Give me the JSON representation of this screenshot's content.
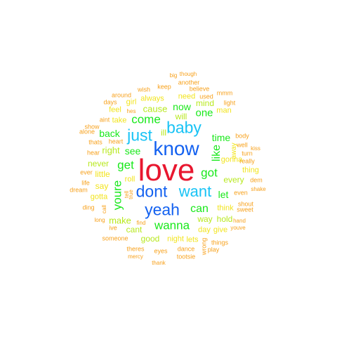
{
  "colors": {
    "red": "#e8172f",
    "blue": "#1361f0",
    "cyan": "#19c3f5",
    "green": "#18e81a",
    "lime": "#b7e81c",
    "yellow": "#f2e41c",
    "orange": "#f7a11c",
    "dark_orange": "#ef7b16"
  },
  "words": [
    {
      "text": "love",
      "size": 44,
      "color": "red"
    },
    {
      "text": "know",
      "size": 28,
      "color": "blue"
    },
    {
      "text": "dont",
      "size": 23,
      "color": "blue"
    },
    {
      "text": "yeah",
      "size": 23,
      "color": "blue"
    },
    {
      "text": "baby",
      "size": 23,
      "color": "cyan"
    },
    {
      "text": "just",
      "size": 23,
      "color": "cyan"
    },
    {
      "text": "want",
      "size": 22,
      "color": "cyan"
    },
    {
      "text": "wanna",
      "size": 17,
      "color": "green"
    },
    {
      "text": "come",
      "size": 17,
      "color": "green"
    },
    {
      "text": "got",
      "size": 17,
      "color": "green"
    },
    {
      "text": "get",
      "size": 17,
      "color": "green"
    },
    {
      "text": "youre",
      "size": 17,
      "color": "green",
      "vertical": true
    },
    {
      "text": "can",
      "size": 16,
      "color": "green"
    },
    {
      "text": "like",
      "size": 16,
      "color": "green",
      "vertical": true
    },
    {
      "text": "one",
      "size": 15,
      "color": "green"
    },
    {
      "text": "time",
      "size": 14,
      "color": "green"
    },
    {
      "text": "let",
      "size": 14,
      "color": "green"
    },
    {
      "text": "back",
      "size": 14,
      "color": "green"
    },
    {
      "text": "see",
      "size": 14,
      "color": "green"
    },
    {
      "text": "now",
      "size": 14,
      "color": "green"
    },
    {
      "text": "make",
      "size": 13,
      "color": "lime"
    },
    {
      "text": "cause",
      "size": 13,
      "color": "lime"
    },
    {
      "text": "right",
      "size": 13,
      "color": "lime"
    },
    {
      "text": "never",
      "size": 12,
      "color": "lime"
    },
    {
      "text": "every",
      "size": 12,
      "color": "lime"
    },
    {
      "text": "way",
      "size": 12,
      "color": "lime"
    },
    {
      "text": "hold",
      "size": 12,
      "color": "lime"
    },
    {
      "text": "good",
      "size": 12,
      "color": "lime"
    },
    {
      "text": "will",
      "size": 12,
      "color": "lime"
    },
    {
      "text": "mind",
      "size": 12,
      "color": "lime"
    },
    {
      "text": "cant",
      "size": 12,
      "color": "lime"
    },
    {
      "text": "ill",
      "size": 12,
      "color": "lime"
    },
    {
      "text": "say",
      "size": 12,
      "color": "yellow"
    },
    {
      "text": "little",
      "size": 12,
      "color": "yellow"
    },
    {
      "text": "gotta",
      "size": 11,
      "color": "yellow"
    },
    {
      "text": "gonna",
      "size": 11,
      "color": "yellow"
    },
    {
      "text": "thing",
      "size": 11,
      "color": "yellow"
    },
    {
      "text": "take",
      "size": 11,
      "color": "yellow"
    },
    {
      "text": "feel",
      "size": 11,
      "color": "yellow"
    },
    {
      "text": "roll",
      "size": 11,
      "color": "yellow"
    },
    {
      "text": "need",
      "size": 11,
      "color": "yellow"
    },
    {
      "text": "think",
      "size": 11,
      "color": "yellow"
    },
    {
      "text": "night",
      "size": 11,
      "color": "yellow"
    },
    {
      "text": "lets",
      "size": 11,
      "color": "yellow"
    },
    {
      "text": "day",
      "size": 11,
      "color": "yellow"
    },
    {
      "text": "give",
      "size": 11,
      "color": "yellow"
    },
    {
      "text": "man",
      "size": 11,
      "color": "yellow"
    },
    {
      "text": "always",
      "size": 11,
      "color": "yellow"
    },
    {
      "text": "girl",
      "size": 11,
      "color": "yellow"
    },
    {
      "text": "away",
      "size": 10,
      "color": "yellow",
      "vertical": true
    },
    {
      "text": "mmm",
      "size": 9,
      "color": "orange"
    },
    {
      "text": "wish",
      "size": 9,
      "color": "orange"
    },
    {
      "text": "keep",
      "size": 9,
      "color": "orange"
    },
    {
      "text": "believe",
      "size": 9,
      "color": "orange"
    },
    {
      "text": "light",
      "size": 9,
      "color": "orange"
    },
    {
      "text": "around",
      "size": 9,
      "color": "orange"
    },
    {
      "text": "days",
      "size": 9,
      "color": "orange"
    },
    {
      "text": "show",
      "size": 9,
      "color": "orange"
    },
    {
      "text": "alone",
      "size": 9,
      "color": "orange"
    },
    {
      "text": "thats",
      "size": 9,
      "color": "orange"
    },
    {
      "text": "hear",
      "size": 9,
      "color": "orange"
    },
    {
      "text": "heart",
      "size": 9,
      "color": "orange"
    },
    {
      "text": "aint",
      "size": 9,
      "color": "orange"
    },
    {
      "text": "hes",
      "size": 8,
      "color": "orange"
    },
    {
      "text": "ever",
      "size": 9,
      "color": "orange"
    },
    {
      "text": "life",
      "size": 9,
      "color": "orange"
    },
    {
      "text": "dream",
      "size": 9,
      "color": "orange"
    },
    {
      "text": "ding",
      "size": 9,
      "color": "orange"
    },
    {
      "text": "long",
      "size": 8,
      "color": "orange"
    },
    {
      "text": "ive",
      "size": 9,
      "color": "orange"
    },
    {
      "text": "someone",
      "size": 9,
      "color": "orange"
    },
    {
      "text": "theres",
      "size": 9,
      "color": "orange"
    },
    {
      "text": "mercy",
      "size": 8,
      "color": "orange"
    },
    {
      "text": "eyes",
      "size": 9,
      "color": "orange"
    },
    {
      "text": "thank",
      "size": 8,
      "color": "orange"
    },
    {
      "text": "dance",
      "size": 9,
      "color": "orange"
    },
    {
      "text": "tootsie",
      "size": 9,
      "color": "orange"
    },
    {
      "text": "play",
      "size": 9,
      "color": "orange"
    },
    {
      "text": "things",
      "size": 9,
      "color": "orange"
    },
    {
      "text": "youve",
      "size": 8,
      "color": "orange"
    },
    {
      "text": "hand",
      "size": 8,
      "color": "orange"
    },
    {
      "text": "sweet",
      "size": 9,
      "color": "orange"
    },
    {
      "text": "shout",
      "size": 9,
      "color": "orange"
    },
    {
      "text": "even",
      "size": 9,
      "color": "orange"
    },
    {
      "text": "shake",
      "size": 8,
      "color": "orange"
    },
    {
      "text": "dem",
      "size": 9,
      "color": "orange"
    },
    {
      "text": "really",
      "size": 9,
      "color": "orange"
    },
    {
      "text": "turn",
      "size": 9,
      "color": "orange"
    },
    {
      "text": "kiss",
      "size": 8,
      "color": "orange"
    },
    {
      "text": "well",
      "size": 9,
      "color": "orange"
    },
    {
      "text": "body",
      "size": 9,
      "color": "orange"
    },
    {
      "text": "used",
      "size": 9,
      "color": "orange"
    },
    {
      "text": "another",
      "size": 9,
      "color": "orange"
    },
    {
      "text": "big",
      "size": 8,
      "color": "orange"
    },
    {
      "text": "though",
      "size": 8,
      "color": "orange"
    },
    {
      "text": "find",
      "size": 8,
      "color": "orange"
    },
    {
      "text": "call",
      "size": 8,
      "color": "orange",
      "vertical": true
    },
    {
      "text": "tell",
      "size": 8,
      "color": "orange",
      "vertical": true
    },
    {
      "text": "true",
      "size": 8,
      "color": "orange",
      "vertical": true
    },
    {
      "text": "wrong",
      "size": 9,
      "color": "orange",
      "vertical": true
    }
  ]
}
